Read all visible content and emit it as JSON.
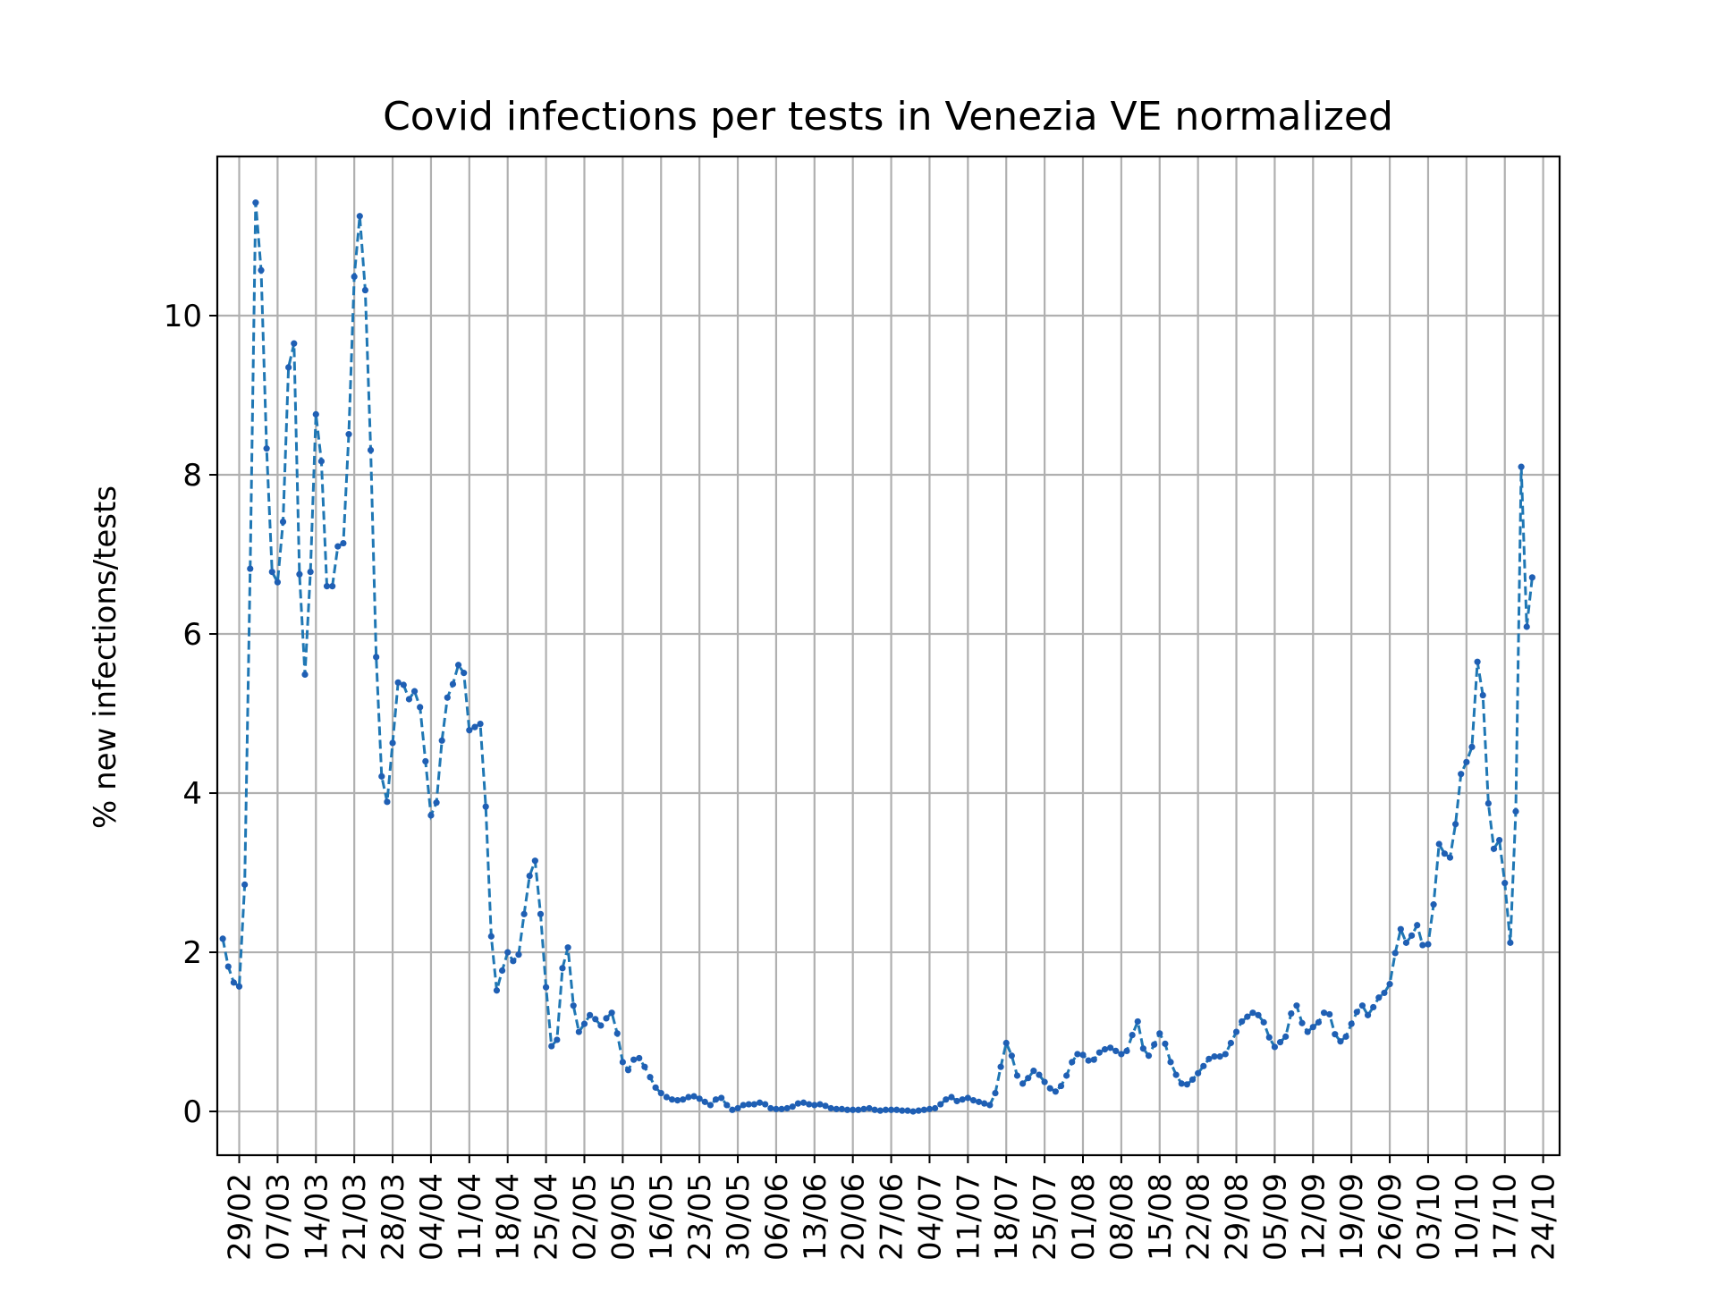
{
  "chart_data": {
    "type": "line",
    "title": "Covid infections per tests in Venezia VE normalized",
    "xlabel": "",
    "ylabel": "% new infections/tests",
    "ylim": [
      -0.55,
      12
    ],
    "yticks": [
      0,
      2,
      4,
      6,
      8,
      10
    ],
    "xlim": [
      "2020-02-25",
      "2020-10-27"
    ],
    "x_tick_labels": [
      {
        "date": "2020-02-29",
        "label": "29/02"
      },
      {
        "date": "2020-03-07",
        "label": "07/03"
      },
      {
        "date": "2020-03-14",
        "label": "14/03"
      },
      {
        "date": "2020-03-21",
        "label": "21/03"
      },
      {
        "date": "2020-03-28",
        "label": "28/03"
      },
      {
        "date": "2020-04-04",
        "label": "04/04"
      },
      {
        "date": "2020-04-11",
        "label": "11/04"
      },
      {
        "date": "2020-04-18",
        "label": "18/04"
      },
      {
        "date": "2020-04-25",
        "label": "25/04"
      },
      {
        "date": "2020-05-02",
        "label": "02/05"
      },
      {
        "date": "2020-05-09",
        "label": "09/05"
      },
      {
        "date": "2020-05-16",
        "label": "16/05"
      },
      {
        "date": "2020-05-23",
        "label": "23/05"
      },
      {
        "date": "2020-05-30",
        "label": "30/05"
      },
      {
        "date": "2020-06-06",
        "label": "06/06"
      },
      {
        "date": "2020-06-13",
        "label": "13/06"
      },
      {
        "date": "2020-06-20",
        "label": "20/06"
      },
      {
        "date": "2020-06-27",
        "label": "27/06"
      },
      {
        "date": "2020-07-04",
        "label": "04/07"
      },
      {
        "date": "2020-07-11",
        "label": "11/07"
      },
      {
        "date": "2020-07-18",
        "label": "18/07"
      },
      {
        "date": "2020-07-25",
        "label": "25/07"
      },
      {
        "date": "2020-08-01",
        "label": "01/08"
      },
      {
        "date": "2020-08-08",
        "label": "08/08"
      },
      {
        "date": "2020-08-15",
        "label": "15/08"
      },
      {
        "date": "2020-08-22",
        "label": "22/08"
      },
      {
        "date": "2020-08-29",
        "label": "29/08"
      },
      {
        "date": "2020-09-05",
        "label": "05/09"
      },
      {
        "date": "2020-09-12",
        "label": "12/09"
      },
      {
        "date": "2020-09-19",
        "label": "19/09"
      },
      {
        "date": "2020-09-26",
        "label": "26/09"
      },
      {
        "date": "2020-10-03",
        "label": "03/10"
      },
      {
        "date": "2020-10-10",
        "label": "10/10"
      },
      {
        "date": "2020-10-17",
        "label": "17/10"
      },
      {
        "date": "2020-10-24",
        "label": "24/10"
      }
    ],
    "grid": true,
    "legend": "none",
    "series": [
      {
        "color": "#1f77b4",
        "marker_color": "#1f5fb4",
        "line_style": "dashed",
        "marker": "dot",
        "x_start": "2020-02-26",
        "x_step_days": 1,
        "values": [
          2.17,
          1.82,
          1.62,
          1.57,
          2.85,
          6.82,
          11.42,
          10.57,
          8.33,
          6.78,
          6.65,
          7.41,
          9.35,
          9.65,
          6.75,
          5.49,
          6.78,
          8.76,
          8.17,
          6.6,
          6.6,
          7.1,
          7.14,
          8.51,
          10.49,
          11.25,
          10.32,
          8.31,
          5.71,
          4.21,
          3.89,
          4.63,
          5.39,
          5.36,
          5.18,
          5.28,
          5.08,
          4.4,
          3.72,
          3.88,
          4.66,
          5.2,
          5.37,
          5.61,
          5.51,
          4.79,
          4.83,
          4.87,
          3.83,
          2.2,
          1.52,
          1.77,
          2.0,
          1.89,
          1.97,
          2.48,
          2.96,
          3.15,
          2.48,
          1.56,
          0.82,
          0.9,
          1.8,
          2.06,
          1.33,
          1.0,
          1.1,
          1.21,
          1.16,
          1.08,
          1.17,
          1.24,
          0.98,
          0.62,
          0.52,
          0.65,
          0.67,
          0.56,
          0.43,
          0.3,
          0.23,
          0.18,
          0.15,
          0.14,
          0.15,
          0.18,
          0.19,
          0.16,
          0.12,
          0.08,
          0.15,
          0.17,
          0.08,
          0.02,
          0.04,
          0.08,
          0.09,
          0.09,
          0.11,
          0.09,
          0.04,
          0.03,
          0.03,
          0.04,
          0.06,
          0.1,
          0.11,
          0.09,
          0.08,
          0.09,
          0.07,
          0.04,
          0.03,
          0.03,
          0.02,
          0.02,
          0.02,
          0.03,
          0.04,
          0.02,
          0.01,
          0.02,
          0.02,
          0.02,
          0.01,
          0.01,
          0.0,
          0.01,
          0.02,
          0.03,
          0.04,
          0.09,
          0.15,
          0.18,
          0.13,
          0.15,
          0.17,
          0.14,
          0.12,
          0.1,
          0.08,
          0.23,
          0.56,
          0.86,
          0.7,
          0.45,
          0.35,
          0.42,
          0.51,
          0.46,
          0.37,
          0.29,
          0.25,
          0.32,
          0.45,
          0.62,
          0.72,
          0.71,
          0.64,
          0.65,
          0.74,
          0.78,
          0.8,
          0.76,
          0.72,
          0.76,
          0.96,
          1.13,
          0.79,
          0.7,
          0.84,
          0.98,
          0.85,
          0.62,
          0.46,
          0.35,
          0.34,
          0.4,
          0.48,
          0.57,
          0.66,
          0.69,
          0.69,
          0.72,
          0.86,
          1.0,
          1.13,
          1.19,
          1.24,
          1.21,
          1.12,
          0.93,
          0.81,
          0.87,
          0.94,
          1.23,
          1.33,
          1.11,
          1.0,
          1.06,
          1.12,
          1.24,
          1.22,
          0.97,
          0.88,
          0.94,
          1.1,
          1.25,
          1.33,
          1.21,
          1.31,
          1.43,
          1.49,
          1.6,
          1.99,
          2.29,
          2.12,
          2.21,
          2.34,
          2.09,
          2.1,
          2.6,
          3.36,
          3.24,
          3.19,
          3.61,
          4.24,
          4.39,
          4.58,
          5.65,
          5.23,
          3.87,
          3.3,
          3.41,
          2.87,
          2.12,
          3.77,
          8.1,
          6.09,
          6.71
        ]
      }
    ]
  }
}
